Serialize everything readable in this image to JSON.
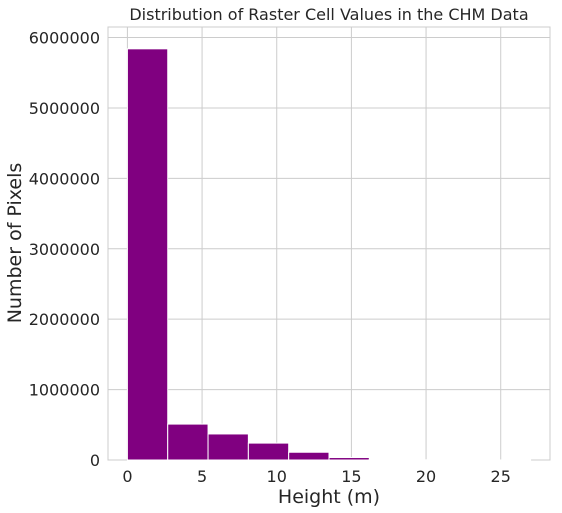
{
  "chart_data": {
    "type": "bar",
    "title": "Distribution of Raster Cell Values in the CHM Data",
    "xlabel": "Height (m)",
    "ylabel": "Number of Pixels",
    "xlim": [
      -1.3,
      28.3
    ],
    "ylim": [
      0,
      6150000
    ],
    "x_ticks": [
      0,
      5,
      10,
      15,
      20,
      25
    ],
    "y_ticks": [
      0,
      1000000,
      2000000,
      3000000,
      4000000,
      5000000,
      6000000
    ],
    "grid": true,
    "bar_color": "#800080",
    "bins": [
      {
        "start": 0.0,
        "end": 2.7,
        "value": 5840000
      },
      {
        "start": 2.7,
        "end": 5.4,
        "value": 510000
      },
      {
        "start": 5.4,
        "end": 8.1,
        "value": 370000
      },
      {
        "start": 8.1,
        "end": 10.8,
        "value": 240000
      },
      {
        "start": 10.8,
        "end": 13.5,
        "value": 110000
      },
      {
        "start": 13.5,
        "end": 16.2,
        "value": 35000
      },
      {
        "start": 16.2,
        "end": 18.9,
        "value": 8000
      },
      {
        "start": 18.9,
        "end": 21.6,
        "value": 3000
      },
      {
        "start": 21.6,
        "end": 24.3,
        "value": 1500
      },
      {
        "start": 24.3,
        "end": 27.0,
        "value": 800
      }
    ]
  }
}
